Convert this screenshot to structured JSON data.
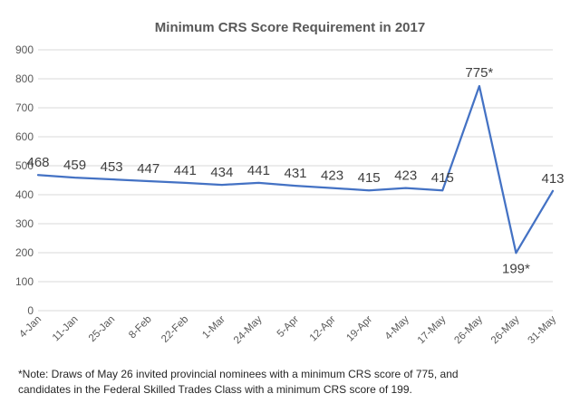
{
  "chart_data": {
    "type": "line",
    "title": "Minimum CRS Score Requirement in 2017",
    "xlabel": "",
    "ylabel": "",
    "ylim": [
      0,
      900
    ],
    "yticks": [
      0,
      100,
      200,
      300,
      400,
      500,
      600,
      700,
      800,
      900
    ],
    "grid": true,
    "legend": "none",
    "categories": [
      "4-Jan",
      "11-Jan",
      "25-Jan",
      "8-Feb",
      "22-Feb",
      "1-Mar",
      "24-May",
      "5-Apr",
      "12-Apr",
      "19-Apr",
      "4-May",
      "17-May",
      "26-May",
      "26-May",
      "31-May"
    ],
    "values": [
      468,
      459,
      453,
      447,
      441,
      434,
      441,
      431,
      423,
      415,
      423,
      415,
      775,
      199,
      413
    ],
    "data_labels": [
      "468",
      "459",
      "453",
      "447",
      "441",
      "434",
      "441",
      "431",
      "423",
      "415",
      "423",
      "415",
      "775*",
      "199*",
      "413"
    ],
    "line_color": "#4472C4",
    "grid_color": "#D9D9D9"
  },
  "note": {
    "line1": "*Note: Draws of May 26 invited provincial nominees with a minimum CRS score of 775, and",
    "line2": "candidates in the Federal Skilled Trades Class with a minimum CRS score of 199."
  }
}
